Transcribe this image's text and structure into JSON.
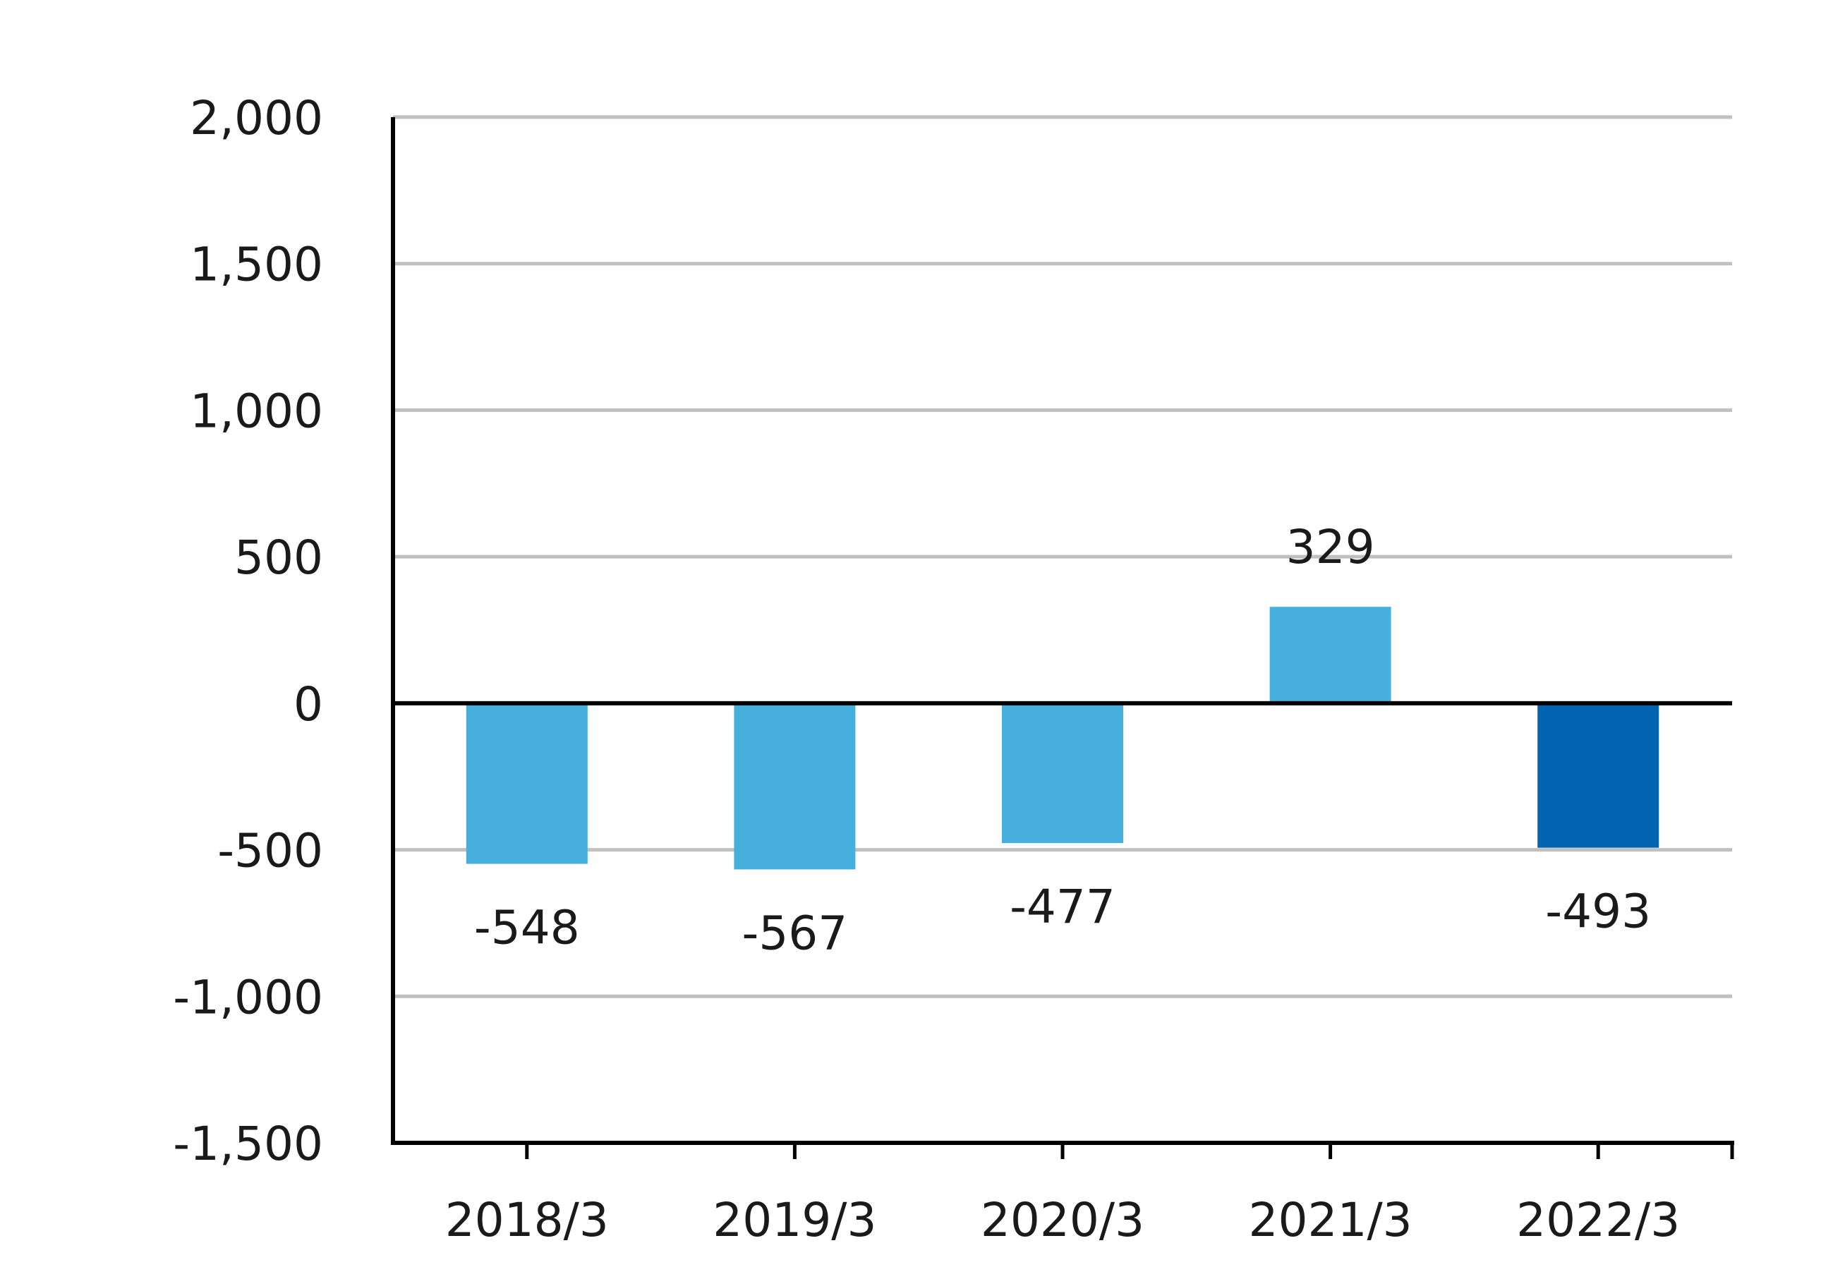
{
  "chart_data": {
    "type": "bar",
    "categories": [
      "2018/3",
      "2019/3",
      "2020/3",
      "2021/3",
      "2022/3"
    ],
    "values": [
      -548,
      -567,
      -477,
      329,
      -493
    ],
    "data_labels": [
      "-548",
      "-567",
      "-477",
      "329",
      "-493"
    ],
    "ylim": [
      -1500,
      2000
    ],
    "yticks": [
      2000,
      1500,
      1000,
      500,
      0,
      -500,
      -1000,
      -1500
    ],
    "ytick_labels": [
      "2,000",
      "1,500",
      "1,000",
      "500",
      "0",
      "-500",
      "-1,000",
      "-1,500"
    ],
    "title": "",
    "xlabel": "",
    "ylabel": "",
    "grid": true,
    "colors": {
      "bar": "#45b0de",
      "highlight_bar": "#0065b1",
      "grid": "#c0c0c0",
      "axis": "#000000"
    },
    "highlight_index": 4
  }
}
